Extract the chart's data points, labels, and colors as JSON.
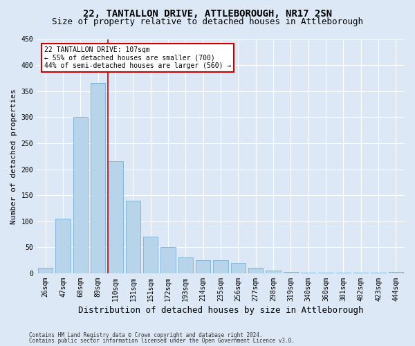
{
  "title1": "22, TANTALLON DRIVE, ATTLEBOROUGH, NR17 2SN",
  "title2": "Size of property relative to detached houses in Attleborough",
  "xlabel": "Distribution of detached houses by size in Attleborough",
  "ylabel": "Number of detached properties",
  "footnote1": "Contains HM Land Registry data © Crown copyright and database right 2024.",
  "footnote2": "Contains public sector information licensed under the Open Government Licence v3.0.",
  "categories": [
    "26sqm",
    "47sqm",
    "68sqm",
    "89sqm",
    "110sqm",
    "131sqm",
    "151sqm",
    "172sqm",
    "193sqm",
    "214sqm",
    "235sqm",
    "256sqm",
    "277sqm",
    "298sqm",
    "319sqm",
    "340sqm",
    "360sqm",
    "381sqm",
    "402sqm",
    "423sqm",
    "444sqm"
  ],
  "values": [
    10,
    105,
    300,
    365,
    215,
    140,
    70,
    50,
    30,
    25,
    25,
    20,
    10,
    5,
    2,
    1,
    1,
    1,
    1,
    1,
    2
  ],
  "bar_color": "#b8d4ea",
  "bar_edge_color": "#7aafd4",
  "ref_line_x": 4,
  "ref_line_color": "#cc0000",
  "annotation_text": "22 TANTALLON DRIVE: 107sqm\n← 55% of detached houses are smaller (700)\n44% of semi-detached houses are larger (560) →",
  "annotation_box_color": "#ffffff",
  "annotation_box_edge": "#cc0000",
  "ylim": [
    0,
    450
  ],
  "yticks": [
    0,
    50,
    100,
    150,
    200,
    250,
    300,
    350,
    400,
    450
  ],
  "bg_color": "#dce8f5",
  "plot_bg_color": "#dce8f5",
  "grid_color": "#ffffff",
  "title_fontsize": 10,
  "subtitle_fontsize": 9,
  "tick_fontsize": 7,
  "ylabel_fontsize": 8,
  "xlabel_fontsize": 9
}
